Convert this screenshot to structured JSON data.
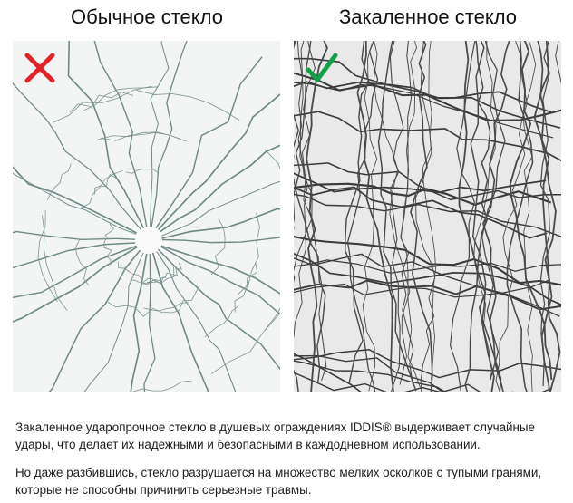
{
  "left": {
    "title": "Обычное стекло",
    "mark_icon": "cross-icon",
    "mark_color": "#e32227"
  },
  "right": {
    "title": "Закаленное стекло",
    "mark_icon": "check-icon",
    "mark_color": "#12a04a"
  },
  "description": {
    "paragraph1": "Закаленное ударопрочное стекло в душевых ограждениях IDDIS® выдерживает случайные удары, что делает их надежными и безопасными в каждодневном использовании.",
    "paragraph2": "Но даже разбившись, стекло разрушается на множество мелких осколков с тупыми гранями, которые не способны причинить серьезные травмы."
  }
}
